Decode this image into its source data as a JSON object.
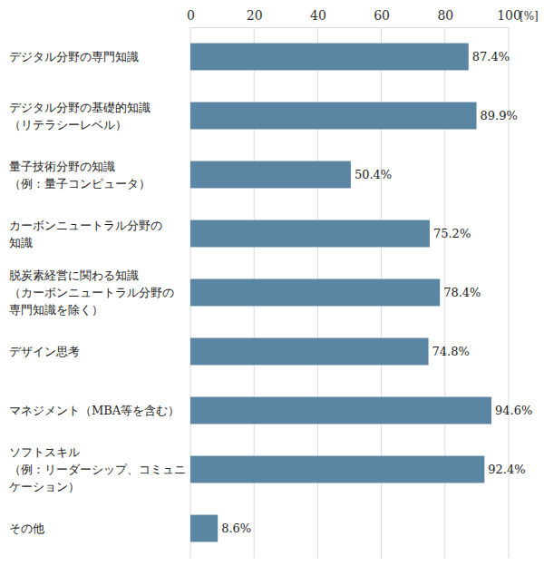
{
  "chart_data": {
    "type": "bar",
    "orientation": "horizontal",
    "xlabel": "[%]",
    "categories": [
      "デジタル分野の専門知識",
      "デジタル分野の基礎的知識\n（リテラシーレベル）",
      "量子技術分野の知識\n（例：量子コンピュータ）",
      "カーボンニュートラル分野の\n知識",
      "脱炭素経営に関わる知識\n（カーボンニュートラル分野の\n専門知識を除く）",
      "デザイン思考",
      "マネジメント（MBA等を含む）",
      "ソフトスキル\n（例：リーダーシップ、コミュニ\nケーション）",
      "その他"
    ],
    "values": [
      87.4,
      89.9,
      50.4,
      75.2,
      78.4,
      74.8,
      94.6,
      92.4,
      8.6
    ],
    "value_labels": [
      "87.4%",
      "89.9%",
      "50.4%",
      "75.2%",
      "78.4%",
      "74.8%",
      "94.6%",
      "92.4%",
      "8.6%"
    ],
    "color": "#5b86a3",
    "xlim": [
      0,
      100
    ],
    "xticks": [
      0,
      20,
      40,
      60,
      80,
      100
    ],
    "grid": true,
    "data_labels": true
  }
}
